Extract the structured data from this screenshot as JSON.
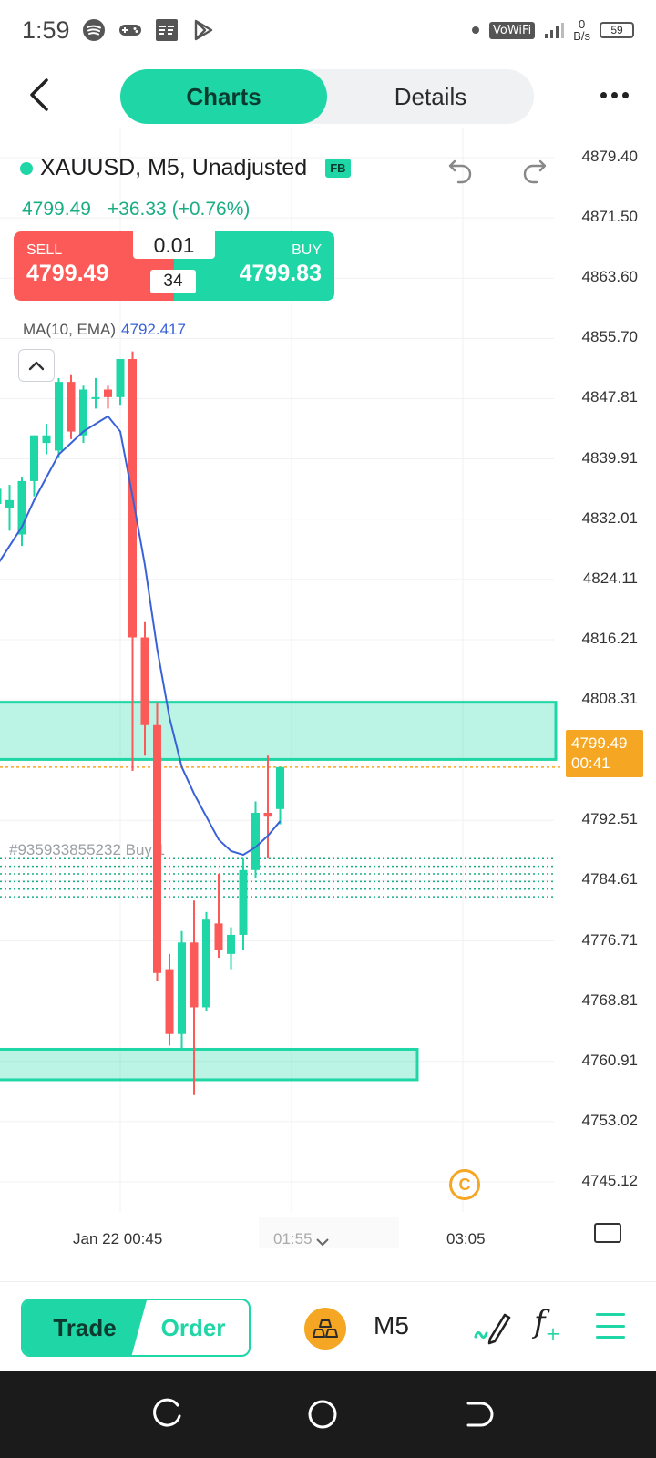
{
  "status_bar": {
    "time": "1:59",
    "left_icons": [
      "spotify-icon",
      "gamepad-icon",
      "fastbull-icon",
      "play-store-icon"
    ],
    "vowifi": "VoWiFi",
    "net_speed_value": "0",
    "net_speed_unit": "B/s",
    "battery": "59"
  },
  "header": {
    "tabs": [
      {
        "label": "Charts",
        "active": true
      },
      {
        "label": "Details",
        "active": false
      }
    ]
  },
  "symbol": {
    "name": "XAUUSD, M5, Unadjusted",
    "badge": "FB",
    "price": "4799.49",
    "change": "+36.33 (+0.76%)"
  },
  "trade_box": {
    "sell_label": "SELL",
    "sell_price": "4799.49",
    "buy_label": "BUY",
    "buy_price": "4799.83",
    "lot": "0.01",
    "spread": "34"
  },
  "indicator": {
    "label": "MA(10, EMA)",
    "value": "4792.417"
  },
  "price_axis": [
    "4879.40",
    "4871.50",
    "4863.60",
    "4855.70",
    "4847.81",
    "4839.91",
    "4832.01",
    "4824.11",
    "4816.21",
    "4808.31",
    "4792.51",
    "4784.61",
    "4776.71",
    "4768.81",
    "4760.91",
    "4753.02",
    "4745.12"
  ],
  "current_price_tag": {
    "price": "4799.49",
    "countdown": "00:41"
  },
  "order_line_label": "#935933855232 Buy 1",
  "time_axis": {
    "left": "Jan 22 00:45",
    "middle": "01:55",
    "right": "03:05"
  },
  "chart_data": {
    "type": "candlestick",
    "symbol": "XAUUSD",
    "timeframe": "M5",
    "ylim": [
      4741.17,
      4883.35
    ],
    "candles": [
      {
        "open": 4834.0,
        "high": 4836.5,
        "low": 4826.0,
        "close": 4836.0
      },
      {
        "open": 4833.5,
        "high": 4836.5,
        "low": 4830.5,
        "close": 4834.5
      },
      {
        "open": 4830.0,
        "high": 4837.5,
        "low": 4828.5,
        "close": 4837.0
      },
      {
        "open": 4837.0,
        "high": 4843.0,
        "low": 4835.0,
        "close": 4843.0
      },
      {
        "open": 4842.0,
        "high": 4844.5,
        "low": 4840.5,
        "close": 4843.0
      },
      {
        "open": 4841.0,
        "high": 4850.5,
        "low": 4840.0,
        "close": 4850.0
      },
      {
        "open": 4850.0,
        "high": 4851.0,
        "low": 4842.5,
        "close": 4843.5
      },
      {
        "open": 4843.0,
        "high": 4849.5,
        "low": 4842.0,
        "close": 4849.0
      },
      {
        "open": 4848.0,
        "high": 4850.5,
        "low": 4846.5,
        "close": 4848.0
      },
      {
        "open": 4849.0,
        "high": 4849.5,
        "low": 4846.5,
        "close": 4848.0
      },
      {
        "open": 4848.0,
        "high": 4853.0,
        "low": 4847.0,
        "close": 4853.0
      },
      {
        "open": 4853.0,
        "high": 4854.0,
        "low": 4799.0,
        "close": 4816.5
      },
      {
        "open": 4816.5,
        "high": 4818.5,
        "low": 4801.0,
        "close": 4805.0
      },
      {
        "open": 4805.0,
        "high": 4808.0,
        "low": 4771.5,
        "close": 4772.5
      },
      {
        "open": 4773.0,
        "high": 4775.0,
        "low": 4763.0,
        "close": 4764.5
      },
      {
        "open": 4764.5,
        "high": 4778.0,
        "low": 4762.5,
        "close": 4776.5
      },
      {
        "open": 4776.5,
        "high": 4782.0,
        "low": 4756.5,
        "close": 4768.0
      },
      {
        "open": 4768.0,
        "high": 4780.5,
        "low": 4767.5,
        "close": 4779.5
      },
      {
        "open": 4779.0,
        "high": 4785.5,
        "low": 4774.5,
        "close": 4775.5
      },
      {
        "open": 4775.0,
        "high": 4778.5,
        "low": 4773.0,
        "close": 4777.5
      },
      {
        "open": 4777.5,
        "high": 4787.5,
        "low": 4775.5,
        "close": 4786.0
      },
      {
        "open": 4786.0,
        "high": 4795.0,
        "low": 4785.0,
        "close": 4793.5
      },
      {
        "open": 4793.5,
        "high": 4801.0,
        "low": 4787.5,
        "close": 4793.0
      },
      {
        "open": 4794.0,
        "high": 4799.5,
        "low": 4792.0,
        "close": 4799.5
      }
    ],
    "ma_ema10": [
      4826.0,
      4828.5,
      4831.0,
      4834.5,
      4837.5,
      4840.5,
      4842.0,
      4843.5,
      4844.5,
      4845.5,
      4843.5,
      4835.0,
      4826.0,
      4815.0,
      4806.0,
      4799.5,
      4796.0,
      4793.0,
      4790.0,
      4788.5,
      4788.0,
      4789.0,
      4790.5,
      4792.417
    ],
    "zones": [
      {
        "low": 4800.5,
        "high": 4808.0
      },
      {
        "low": 4758.5,
        "high": 4762.5
      }
    ],
    "order_lines": [
      4787.5,
      4786.5,
      4785.5,
      4784.5,
      4783.5,
      4782.5
    ],
    "current_price": 4799.49,
    "up_color": "#1fd6a6",
    "down_color": "#fb5a58",
    "ma_color": "#3a62d8",
    "zone_color": "#1fd6a6"
  },
  "bottom_toolbar": {
    "trade_label": "Trade",
    "order_label": "Order",
    "timeframe": "M5",
    "icons": [
      "gold-bars-icon",
      "draw-pen-icon",
      "function-icon",
      "menu-icon"
    ]
  },
  "colors": {
    "accent": "#1fd6a6",
    "sell": "#fb5a58",
    "price_tag": "#f5a623"
  }
}
